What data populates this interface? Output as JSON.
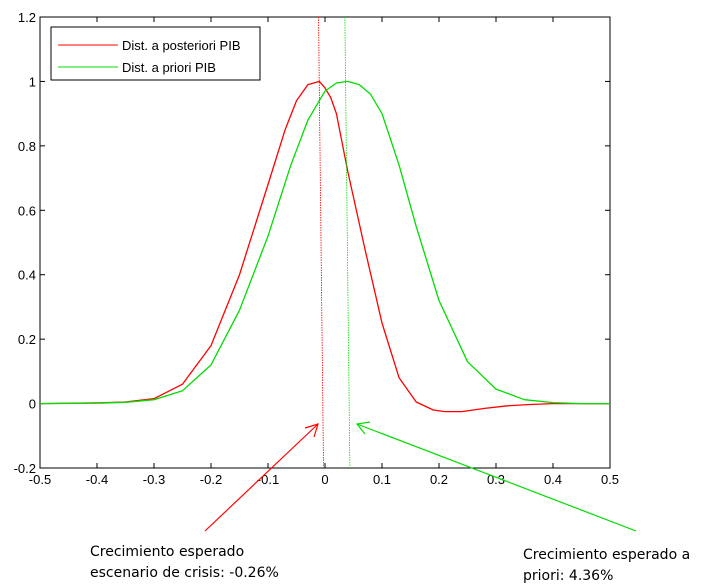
{
  "chart_data": {
    "type": "line",
    "xlim": [
      -0.5,
      0.5
    ],
    "ylim": [
      -0.2,
      1.2
    ],
    "xticks": [
      -0.5,
      -0.4,
      -0.3,
      -0.2,
      -0.1,
      0,
      0.1,
      0.2,
      0.3,
      0.4,
      0.5
    ],
    "xtick_labels": [
      "-0.5",
      "-0.4",
      "-0.3",
      "-0.2",
      "-0.1",
      "0",
      "0.1",
      "0.2",
      "0.3",
      "0.4",
      "0.5"
    ],
    "yticks": [
      -0.2,
      0,
      0.2,
      0.4,
      0.6,
      0.8,
      1,
      1.2
    ],
    "ytick_labels": [
      "-0.2",
      "0",
      "0.2",
      "0.4",
      "0.6",
      "0.8",
      "1",
      "1.2"
    ],
    "legend_position": "top-left",
    "series": [
      {
        "name": "Dist. a posteriori PIB",
        "color": "#ff0000",
        "x": [
          -0.5,
          -0.4,
          -0.35,
          -0.3,
          -0.25,
          -0.2,
          -0.15,
          -0.1,
          -0.07,
          -0.05,
          -0.03,
          -0.01,
          0.0,
          0.01,
          0.02,
          0.04,
          0.07,
          0.1,
          0.13,
          0.16,
          0.19,
          0.21,
          0.24,
          0.28,
          0.32,
          0.36,
          0.4,
          0.45,
          0.5
        ],
        "y": [
          0.0,
          0.002,
          0.005,
          0.015,
          0.06,
          0.18,
          0.4,
          0.68,
          0.85,
          0.94,
          0.99,
          1.0,
          0.98,
          0.95,
          0.9,
          0.72,
          0.48,
          0.25,
          0.08,
          0.005,
          -0.02,
          -0.025,
          -0.025,
          -0.015,
          -0.007,
          -0.003,
          0.0,
          0.0,
          0.0
        ]
      },
      {
        "name": "Dist. a priori PIB",
        "color": "#00dd00",
        "x": [
          -0.5,
          -0.4,
          -0.35,
          -0.3,
          -0.25,
          -0.2,
          -0.15,
          -0.1,
          -0.06,
          -0.03,
          0.0,
          0.02,
          0.04,
          0.06,
          0.08,
          0.1,
          0.13,
          0.16,
          0.2,
          0.25,
          0.3,
          0.35,
          0.4,
          0.45,
          0.5
        ],
        "y": [
          0.0,
          0.001,
          0.004,
          0.012,
          0.04,
          0.12,
          0.29,
          0.52,
          0.74,
          0.88,
          0.97,
          0.995,
          1.0,
          0.99,
          0.96,
          0.9,
          0.74,
          0.55,
          0.32,
          0.13,
          0.045,
          0.012,
          0.003,
          0.0,
          0.0
        ]
      }
    ],
    "reference_lines": [
      {
        "x": -0.0026,
        "color": "#ff0000"
      },
      {
        "x": 0.0436,
        "color": "#00dd00"
      }
    ],
    "annotations": [
      {
        "text": "Crecimiento esperado\nescenario de crisis: -0.26%",
        "points_to_x": -0.0026,
        "color": "#ff0000"
      },
      {
        "text": "Crecimiento esperado a\npriori: 4.36%",
        "points_to_x": 0.0436,
        "color": "#00dd00"
      }
    ]
  },
  "annotations_text": {
    "posterior": "Crecimiento esperado\nescenario de crisis: -0.26%",
    "prior": "Crecimiento esperado a\npriori: 4.36%"
  }
}
